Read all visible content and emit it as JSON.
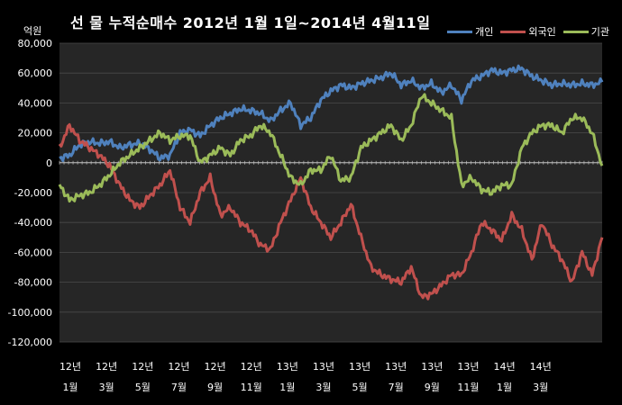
{
  "chart_data": {
    "type": "line",
    "title": "선 물 누적순매수 2012년 1월 1일~2014년 4월11일",
    "unit_label": "억원",
    "ylim": [
      -120000,
      80000
    ],
    "y_ticks": [
      "80,000",
      "60,000",
      "40,000",
      "20,000",
      "0",
      "-20,000",
      "-40,000",
      "-60,000",
      "-80,000",
      "-100,000",
      "-120,000"
    ],
    "y_tick_values": [
      80000,
      60000,
      40000,
      20000,
      0,
      -20000,
      -40000,
      -60000,
      -80000,
      -100000,
      -120000
    ],
    "x_ticks": [
      {
        "year": "12년",
        "month": "1월"
      },
      {
        "year": "12년",
        "month": "3월"
      },
      {
        "year": "12년",
        "month": "5월"
      },
      {
        "year": "12년",
        "month": "7월"
      },
      {
        "year": "12년",
        "month": "9월"
      },
      {
        "year": "12년",
        "month": "11월"
      },
      {
        "year": "13년",
        "month": "1월"
      },
      {
        "year": "13년",
        "month": "3월"
      },
      {
        "year": "13년",
        "month": "5월"
      },
      {
        "year": "13년",
        "month": "7월"
      },
      {
        "year": "13년",
        "month": "9월"
      },
      {
        "year": "13년",
        "month": "11월"
      },
      {
        "year": "14년",
        "month": "1월"
      },
      {
        "year": "14년",
        "month": "3월"
      }
    ],
    "x_periods": [
      "12.01a",
      "12.01b",
      "12.02a",
      "12.02b",
      "12.03a",
      "12.03b",
      "12.04a",
      "12.04b",
      "12.05a",
      "12.05b",
      "12.06a",
      "12.06b",
      "12.07a",
      "12.07b",
      "12.08a",
      "12.08b",
      "12.09a",
      "12.09b",
      "12.10a",
      "12.10b",
      "12.11a",
      "12.11b",
      "12.12a",
      "12.12b",
      "13.01a",
      "13.01b",
      "13.02a",
      "13.02b",
      "13.03a",
      "13.03b",
      "13.04a",
      "13.04b",
      "13.05a",
      "13.05b",
      "13.06a",
      "13.06b",
      "13.07a",
      "13.07b",
      "13.08a",
      "13.08b",
      "13.09a",
      "13.09b",
      "13.10a",
      "13.10b",
      "13.11a",
      "13.11b",
      "13.12a",
      "13.12b",
      "14.01a",
      "14.01b",
      "14.02a",
      "14.02b",
      "14.03a",
      "14.03b",
      "14.04a"
    ],
    "series": [
      {
        "name": "개인",
        "color": "#4F81BD",
        "values": [
          3000,
          5000,
          12000,
          14000,
          13000,
          14000,
          10000,
          12000,
          13000,
          9000,
          3000,
          5000,
          20000,
          22000,
          18000,
          25000,
          30000,
          33000,
          36000,
          35000,
          33000,
          28000,
          35000,
          40000,
          25000,
          30000,
          42000,
          48000,
          52000,
          50000,
          53000,
          55000,
          57000,
          60000,
          52000,
          55000,
          50000,
          53000,
          47000,
          52000,
          42000,
          55000,
          58000,
          62000,
          60000,
          62000,
          63000,
          58000,
          55000,
          52000,
          53000,
          52000,
          53000,
          52000,
          54000
        ]
      },
      {
        "name": "외국인",
        "color": "#C0504D",
        "values": [
          10000,
          25000,
          15000,
          10000,
          5000,
          -2000,
          -15000,
          -25000,
          -30000,
          -22000,
          -15000,
          -5000,
          -30000,
          -40000,
          -20000,
          -10000,
          -35000,
          -30000,
          -40000,
          -45000,
          -55000,
          -58000,
          -40000,
          -25000,
          -10000,
          -30000,
          -40000,
          -50000,
          -40000,
          -28000,
          -50000,
          -70000,
          -75000,
          -78000,
          -80000,
          -70000,
          -90000,
          -88000,
          -82000,
          -75000,
          -75000,
          -60000,
          -40000,
          -45000,
          -52000,
          -35000,
          -45000,
          -65000,
          -40000,
          -55000,
          -65000,
          -80000,
          -60000,
          -75000,
          -50000
        ]
      },
      {
        "name": "기관",
        "color": "#9BBB59",
        "values": [
          -15000,
          -25000,
          -22000,
          -20000,
          -15000,
          -8000,
          0,
          5000,
          10000,
          15000,
          20000,
          15000,
          18000,
          18000,
          0,
          5000,
          10000,
          5000,
          15000,
          18000,
          25000,
          20000,
          5000,
          -10000,
          -15000,
          -5000,
          -5000,
          5000,
          -12000,
          -10000,
          10000,
          15000,
          20000,
          25000,
          15000,
          25000,
          45000,
          40000,
          35000,
          30000,
          -15000,
          -10000,
          -18000,
          -20000,
          -15000,
          -15000,
          10000,
          20000,
          25000,
          25000,
          20000,
          30000,
          30000,
          20000,
          -2000
        ]
      }
    ]
  }
}
